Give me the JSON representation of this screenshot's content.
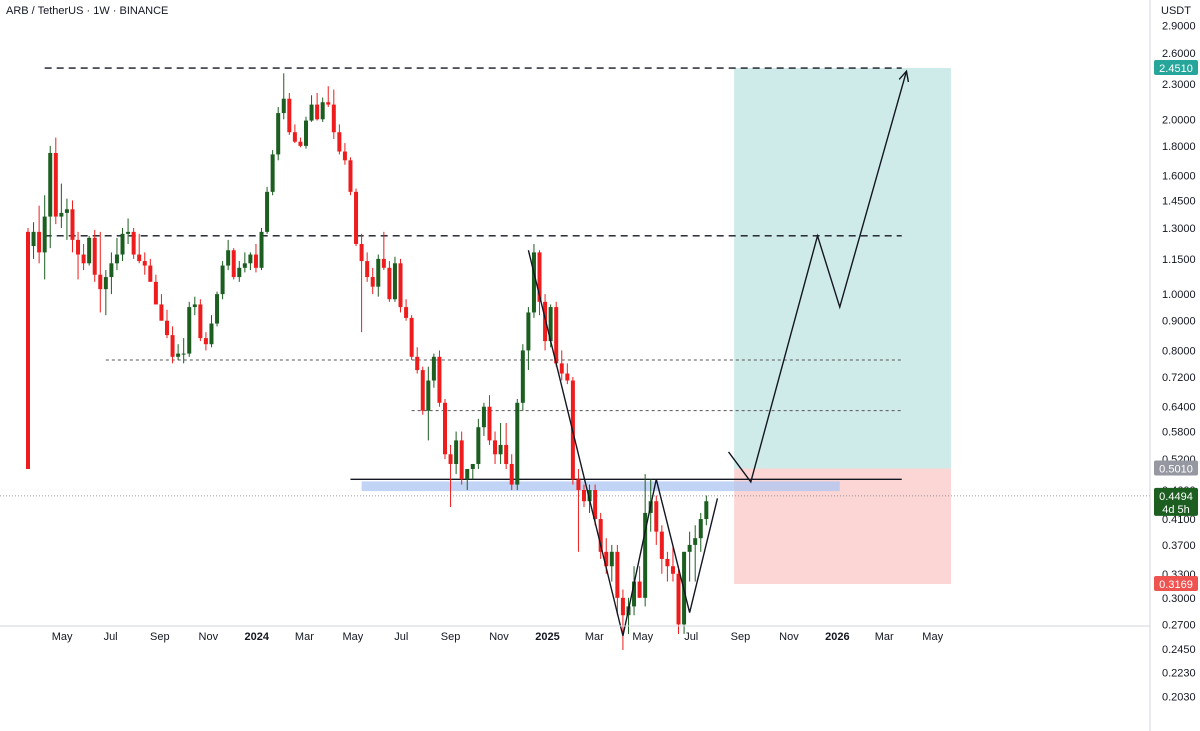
{
  "header": {
    "symbol": "ARB / TetherUS · 1W · BINANCE",
    "currency": "USDT"
  },
  "colors": {
    "up": "#1b5e20",
    "down": "#ee1c1c",
    "target": "#26a69a",
    "stop": "#ef5350",
    "support_band": "#aec6f2",
    "grid": "#ffffff",
    "axis": "#131722"
  },
  "chart_data": {
    "type": "candlestick",
    "title": "",
    "xlabel": "",
    "ylabel": "USDT",
    "yscale": "log",
    "ylim": [
      0.19,
      3.2
    ],
    "grid": false,
    "y_ticks": [
      "2.9000",
      "2.6000",
      "2.3000",
      "2.0000",
      "1.8000",
      "1.6000",
      "1.4500",
      "1.3000",
      "1.1500",
      "1.0000",
      "0.9000",
      "0.8000",
      "0.7200",
      "0.6400",
      "0.5800",
      "0.5200",
      "0.4600",
      "0.4100",
      "0.3700",
      "0.3300",
      "0.3000",
      "0.2700",
      "0.2450",
      "0.2230",
      "0.2030"
    ],
    "x_ticks": [
      {
        "label": "May",
        "date": "2023-05-01",
        "bold": false
      },
      {
        "label": "Jul",
        "date": "2023-07-01",
        "bold": false
      },
      {
        "label": "Sep",
        "date": "2023-09-01",
        "bold": false
      },
      {
        "label": "Nov",
        "date": "2023-11-01",
        "bold": false
      },
      {
        "label": "2024",
        "date": "2024-01-01",
        "bold": true
      },
      {
        "label": "Mar",
        "date": "2024-03-01",
        "bold": false
      },
      {
        "label": "May",
        "date": "2024-05-01",
        "bold": false
      },
      {
        "label": "Jul",
        "date": "2024-07-01",
        "bold": false
      },
      {
        "label": "Sep",
        "date": "2024-09-01",
        "bold": false
      },
      {
        "label": "Nov",
        "date": "2024-11-01",
        "bold": false
      },
      {
        "label": "2025",
        "date": "2025-01-01",
        "bold": true
      },
      {
        "label": "Mar",
        "date": "2025-03-01",
        "bold": false
      },
      {
        "label": "May",
        "date": "2025-05-01",
        "bold": false
      },
      {
        "label": "Jul",
        "date": "2025-07-01",
        "bold": false
      },
      {
        "label": "Sep",
        "date": "2025-09-01",
        "bold": false
      },
      {
        "label": "Nov",
        "date": "2025-11-01",
        "bold": false
      },
      {
        "label": "2026",
        "date": "2026-01-01",
        "bold": true
      },
      {
        "label": "Mar",
        "date": "2026-03-01",
        "bold": false
      },
      {
        "label": "May",
        "date": "2026-05-01",
        "bold": false
      }
    ],
    "price_tags": [
      {
        "label": "2.4510",
        "value": 2.451,
        "kind": "target"
      },
      {
        "label": "0.5010",
        "value": 0.501,
        "kind": "entry"
      },
      {
        "label": "0.4494",
        "sublabel": "4d 5h",
        "value": 0.4494,
        "kind": "last"
      },
      {
        "label": "0.3169",
        "value": 0.3169,
        "kind": "stop"
      }
    ],
    "levels": [
      {
        "name": "resistance-top",
        "value": 2.45,
        "from": "2023-04-09",
        "to": "2026-03-23",
        "style": "dashed"
      },
      {
        "name": "resistance-mid",
        "value": 1.26,
        "from": "2023-04-09",
        "to": "2026-03-23",
        "style": "dashed"
      },
      {
        "name": "level-0.77",
        "value": 0.77,
        "from": "2023-06-25",
        "to": "2026-03-23",
        "style": "dotted"
      },
      {
        "name": "level-0.63",
        "value": 0.63,
        "from": "2024-07-14",
        "to": "2026-03-23",
        "style": "dotted"
      },
      {
        "name": "neckline",
        "value": 0.48,
        "from": "2024-04-28",
        "to": "2026-03-23",
        "style": "solid"
      },
      {
        "name": "last-price",
        "value": 0.4494,
        "from": "2023-03-19",
        "to": "2026-06-01",
        "style": "dotted-thin"
      }
    ],
    "support_zone": {
      "from": "2024-05-12",
      "to": "2026-01-04",
      "high": 0.476,
      "low": 0.458
    },
    "position": {
      "from": "2025-08-24",
      "to": "2026-05-24",
      "target": 2.451,
      "entry": 0.501,
      "stop": 0.3169
    },
    "projection": [
      {
        "date": "2025-08-17",
        "price": 0.535
      },
      {
        "date": "2025-09-14",
        "price": 0.475
      },
      {
        "date": "2025-12-07",
        "price": 1.26
      },
      {
        "date": "2026-01-04",
        "price": 0.95
      },
      {
        "date": "2026-03-29",
        "price": 2.42
      }
    ],
    "pattern_path": [
      {
        "date": "2024-12-08",
        "price": 1.19
      },
      {
        "date": "2025-04-06",
        "price": 0.258
      },
      {
        "date": "2025-05-18",
        "price": 0.48
      },
      {
        "date": "2025-06-29",
        "price": 0.283
      },
      {
        "date": "2025-08-03",
        "price": 0.445
      }
    ],
    "candles": [
      [
        "2023-03-19",
        1.28,
        1.3,
        0.5,
        0.5
      ],
      [
        "2023-03-26",
        1.21,
        1.33,
        1.15,
        1.28
      ],
      [
        "2023-04-02",
        1.28,
        1.42,
        1.13,
        1.18
      ],
      [
        "2023-04-09",
        1.18,
        1.48,
        1.06,
        1.36
      ],
      [
        "2023-04-16",
        1.36,
        1.8,
        1.2,
        1.75
      ],
      [
        "2023-04-23",
        1.75,
        1.86,
        1.32,
        1.36
      ],
      [
        "2023-04-30",
        1.36,
        1.55,
        1.3,
        1.38
      ],
      [
        "2023-05-07",
        1.38,
        1.46,
        1.24,
        1.4
      ],
      [
        "2023-05-14",
        1.4,
        1.45,
        1.18,
        1.24
      ],
      [
        "2023-05-21",
        1.24,
        1.28,
        1.06,
        1.17
      ],
      [
        "2023-05-28",
        1.17,
        1.22,
        1.1,
        1.13
      ],
      [
        "2023-06-04",
        1.13,
        1.26,
        1.12,
        1.25
      ],
      [
        "2023-06-11",
        1.25,
        1.29,
        1.05,
        1.08
      ],
      [
        "2023-06-18",
        1.08,
        1.28,
        0.93,
        1.02
      ],
      [
        "2023-06-25",
        1.02,
        1.1,
        0.92,
        1.07
      ],
      [
        "2023-07-02",
        1.07,
        1.18,
        1.0,
        1.13
      ],
      [
        "2023-07-09",
        1.13,
        1.25,
        1.1,
        1.17
      ],
      [
        "2023-07-16",
        1.17,
        1.3,
        1.14,
        1.27
      ],
      [
        "2023-07-23",
        1.27,
        1.35,
        1.22,
        1.28
      ],
      [
        "2023-07-30",
        1.28,
        1.3,
        1.15,
        1.17
      ],
      [
        "2023-08-06",
        1.17,
        1.27,
        1.13,
        1.14
      ],
      [
        "2023-08-13",
        1.14,
        1.18,
        1.08,
        1.12
      ],
      [
        "2023-08-20",
        1.12,
        1.15,
        1.05,
        1.05
      ],
      [
        "2023-08-27",
        1.05,
        1.08,
        0.96,
        0.96
      ],
      [
        "2023-09-03",
        0.96,
        1.0,
        0.9,
        0.9
      ],
      [
        "2023-09-10",
        0.9,
        0.94,
        0.84,
        0.85
      ],
      [
        "2023-09-17",
        0.85,
        0.88,
        0.76,
        0.78
      ],
      [
        "2023-09-24",
        0.78,
        0.82,
        0.77,
        0.79
      ],
      [
        "2023-10-01",
        0.79,
        0.84,
        0.76,
        0.79
      ],
      [
        "2023-10-08",
        0.79,
        0.97,
        0.78,
        0.95
      ],
      [
        "2023-10-15",
        0.95,
        0.99,
        0.92,
        0.96
      ],
      [
        "2023-10-22",
        0.96,
        0.98,
        0.83,
        0.84
      ],
      [
        "2023-10-29",
        0.84,
        0.86,
        0.8,
        0.82
      ],
      [
        "2023-11-05",
        0.82,
        0.92,
        0.81,
        0.89
      ],
      [
        "2023-11-12",
        0.89,
        1.01,
        0.88,
        1.0
      ],
      [
        "2023-11-19",
        1.0,
        1.14,
        0.98,
        1.12
      ],
      [
        "2023-11-26",
        1.12,
        1.24,
        1.1,
        1.19
      ],
      [
        "2023-12-03",
        1.19,
        1.2,
        1.06,
        1.07
      ],
      [
        "2023-12-10",
        1.07,
        1.14,
        1.05,
        1.11
      ],
      [
        "2023-12-17",
        1.11,
        1.18,
        1.09,
        1.13
      ],
      [
        "2023-12-24",
        1.13,
        1.18,
        1.1,
        1.17
      ],
      [
        "2023-12-31",
        1.17,
        1.22,
        1.09,
        1.11
      ],
      [
        "2024-01-07",
        1.11,
        1.3,
        1.1,
        1.28
      ],
      [
        "2024-01-14",
        1.28,
        1.53,
        1.27,
        1.5
      ],
      [
        "2024-01-21",
        1.5,
        1.77,
        1.48,
        1.74
      ],
      [
        "2024-01-28",
        1.74,
        2.1,
        1.7,
        2.05
      ],
      [
        "2024-02-04",
        2.05,
        2.4,
        2.0,
        2.17
      ],
      [
        "2024-02-11",
        2.17,
        2.22,
        1.88,
        1.9
      ],
      [
        "2024-02-18",
        1.9,
        1.96,
        1.82,
        1.83
      ],
      [
        "2024-02-25",
        1.83,
        1.86,
        1.79,
        1.8
      ],
      [
        "2024-03-03",
        1.8,
        2.02,
        1.78,
        1.99
      ],
      [
        "2024-03-10",
        1.99,
        2.2,
        1.98,
        2.12
      ],
      [
        "2024-03-17",
        2.12,
        2.22,
        1.99,
        2.0
      ],
      [
        "2024-03-24",
        2.0,
        2.18,
        1.98,
        2.14
      ],
      [
        "2024-03-31",
        2.14,
        2.28,
        2.1,
        2.12
      ],
      [
        "2024-04-07",
        2.12,
        2.25,
        1.85,
        1.9
      ],
      [
        "2024-04-14",
        1.9,
        1.96,
        1.74,
        1.76
      ],
      [
        "2024-04-21",
        1.76,
        1.82,
        1.67,
        1.7
      ],
      [
        "2024-04-28",
        1.7,
        1.72,
        1.48,
        1.5
      ],
      [
        "2024-05-05",
        1.5,
        1.52,
        1.21,
        1.22
      ],
      [
        "2024-05-12",
        1.22,
        1.27,
        0.86,
        1.14
      ],
      [
        "2024-05-19",
        1.14,
        1.18,
        1.05,
        1.07
      ],
      [
        "2024-05-26",
        1.07,
        1.11,
        1.0,
        1.03
      ],
      [
        "2024-06-02",
        1.03,
        1.17,
        0.99,
        1.15
      ],
      [
        "2024-06-09",
        1.15,
        1.28,
        1.1,
        1.11
      ],
      [
        "2024-06-16",
        1.11,
        1.14,
        0.97,
        0.98
      ],
      [
        "2024-06-23",
        0.98,
        1.16,
        0.97,
        1.13
      ],
      [
        "2024-06-30",
        1.13,
        1.15,
        0.93,
        0.95
      ],
      [
        "2024-07-07",
        0.95,
        0.98,
        0.9,
        0.91
      ],
      [
        "2024-07-14",
        0.91,
        0.92,
        0.77,
        0.78
      ],
      [
        "2024-07-21",
        0.78,
        0.81,
        0.73,
        0.74
      ],
      [
        "2024-07-28",
        0.74,
        0.75,
        0.62,
        0.63
      ],
      [
        "2024-08-04",
        0.63,
        0.75,
        0.56,
        0.71
      ],
      [
        "2024-08-11",
        0.71,
        0.79,
        0.69,
        0.78
      ],
      [
        "2024-08-18",
        0.78,
        0.8,
        0.64,
        0.65
      ],
      [
        "2024-08-25",
        0.65,
        0.66,
        0.52,
        0.53
      ],
      [
        "2024-09-01",
        0.53,
        0.55,
        0.43,
        0.51
      ],
      [
        "2024-09-08",
        0.51,
        0.58,
        0.49,
        0.56
      ],
      [
        "2024-09-15",
        0.56,
        0.58,
        0.47,
        0.48
      ],
      [
        "2024-09-22",
        0.48,
        0.5,
        0.46,
        0.5
      ],
      [
        "2024-09-29",
        0.5,
        0.51,
        0.48,
        0.51
      ],
      [
        "2024-10-06",
        0.51,
        0.61,
        0.5,
        0.59
      ],
      [
        "2024-10-13",
        0.59,
        0.65,
        0.57,
        0.64
      ],
      [
        "2024-10-20",
        0.64,
        0.67,
        0.55,
        0.56
      ],
      [
        "2024-10-27",
        0.56,
        0.58,
        0.51,
        0.53
      ],
      [
        "2024-11-03",
        0.53,
        0.6,
        0.51,
        0.55
      ],
      [
        "2024-11-10",
        0.55,
        0.6,
        0.5,
        0.51
      ],
      [
        "2024-11-17",
        0.51,
        0.53,
        0.46,
        0.47
      ],
      [
        "2024-11-24",
        0.47,
        0.66,
        0.46,
        0.65
      ],
      [
        "2024-12-01",
        0.65,
        0.82,
        0.63,
        0.8
      ],
      [
        "2024-12-08",
        0.8,
        0.95,
        0.74,
        0.93
      ],
      [
        "2024-12-15",
        0.93,
        1.22,
        0.91,
        1.18
      ],
      [
        "2024-12-22",
        1.18,
        1.19,
        0.92,
        0.97
      ],
      [
        "2024-12-29",
        0.97,
        1.0,
        0.8,
        0.83
      ],
      [
        "2025-01-05",
        0.83,
        0.96,
        0.81,
        0.95
      ],
      [
        "2025-01-12",
        0.95,
        0.97,
        0.75,
        0.76
      ],
      [
        "2025-01-19",
        0.76,
        0.8,
        0.71,
        0.73
      ],
      [
        "2025-01-26",
        0.73,
        0.76,
        0.7,
        0.71
      ],
      [
        "2025-02-02",
        0.71,
        0.72,
        0.47,
        0.48
      ],
      [
        "2025-02-09",
        0.48,
        0.5,
        0.36,
        0.46
      ],
      [
        "2025-02-16",
        0.46,
        0.47,
        0.43,
        0.44
      ],
      [
        "2025-02-23",
        0.44,
        0.47,
        0.42,
        0.46
      ],
      [
        "2025-03-02",
        0.46,
        0.47,
        0.4,
        0.41
      ],
      [
        "2025-03-09",
        0.41,
        0.42,
        0.35,
        0.36
      ],
      [
        "2025-03-16",
        0.36,
        0.38,
        0.33,
        0.34
      ],
      [
        "2025-03-23",
        0.34,
        0.37,
        0.32,
        0.36
      ],
      [
        "2025-03-30",
        0.36,
        0.37,
        0.28,
        0.3
      ],
      [
        "2025-04-06",
        0.3,
        0.31,
        0.244,
        0.28
      ],
      [
        "2025-04-13",
        0.28,
        0.3,
        0.26,
        0.29
      ],
      [
        "2025-04-20",
        0.29,
        0.34,
        0.28,
        0.32
      ],
      [
        "2025-04-27",
        0.32,
        0.34,
        0.3,
        0.3
      ],
      [
        "2025-05-04",
        0.3,
        0.49,
        0.29,
        0.42
      ],
      [
        "2025-05-11",
        0.42,
        0.48,
        0.39,
        0.44
      ],
      [
        "2025-05-18",
        0.44,
        0.45,
        0.37,
        0.39
      ],
      [
        "2025-05-25",
        0.39,
        0.4,
        0.33,
        0.35
      ],
      [
        "2025-06-01",
        0.35,
        0.36,
        0.32,
        0.34
      ],
      [
        "2025-06-08",
        0.34,
        0.37,
        0.32,
        0.33
      ],
      [
        "2025-06-15",
        0.33,
        0.34,
        0.26,
        0.27
      ],
      [
        "2025-06-22",
        0.27,
        0.36,
        0.26,
        0.36
      ],
      [
        "2025-06-29",
        0.36,
        0.39,
        0.32,
        0.37
      ],
      [
        "2025-07-06",
        0.37,
        0.4,
        0.32,
        0.38
      ],
      [
        "2025-07-13",
        0.38,
        0.42,
        0.36,
        0.41
      ],
      [
        "2025-07-20",
        0.41,
        0.45,
        0.4,
        0.44
      ]
    ]
  }
}
